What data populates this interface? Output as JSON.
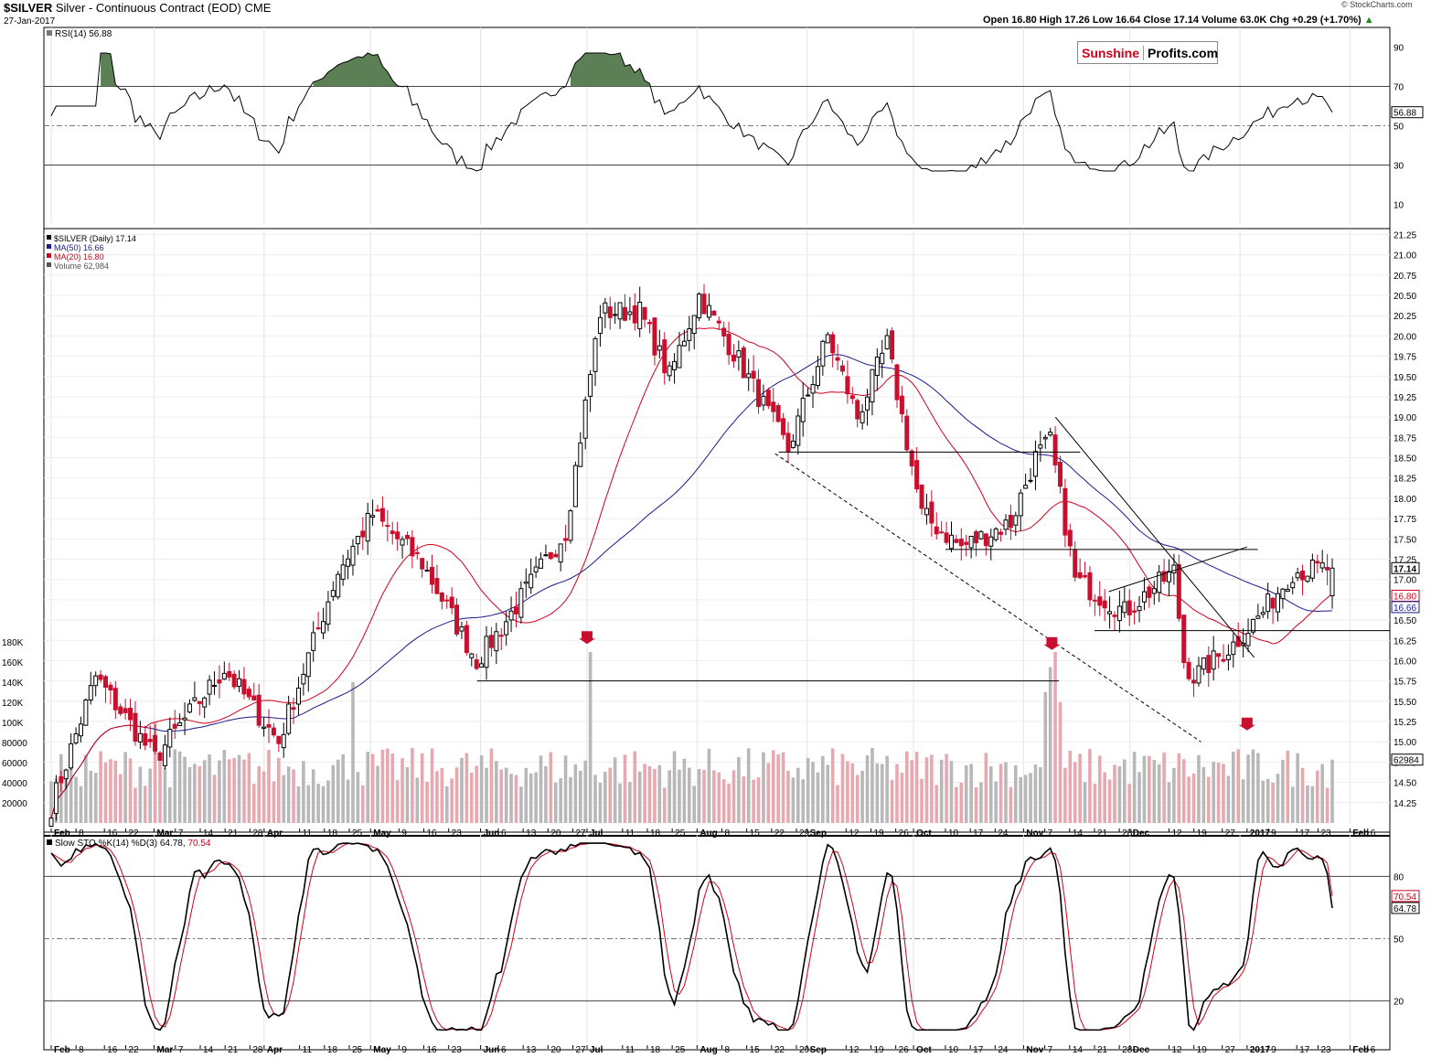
{
  "header": {
    "symbol": "$SILVER",
    "description": "Silver - Continuous Contract (EOD)",
    "exchange": "CME",
    "date": "27-Jan-2017",
    "watermark": "© StockCharts.com",
    "ohlc": "Open 16.80  High 17.26  Low 16.64  Close 17.14  Volume 63.0K  Chg +0.29 (+1.70%)",
    "ohlc_arrow": "▲"
  },
  "logo": {
    "part1": "Sunshine",
    "part2": "Profits.com"
  },
  "colors": {
    "up": "#000000",
    "down": "#c8102e",
    "ma50": "#1a1a8c",
    "ma20": "#d0021b",
    "vol_up": "#b8b8b8",
    "vol_down": "#e8a8b0",
    "rsi_fill": "#5c7f56",
    "stoch_d": "#d0021b"
  },
  "chart_data": [
    {
      "type": "line",
      "panel": "rsi",
      "title": "RSI(14) 56.88",
      "last_value": "56.88",
      "ylim": [
        0,
        100
      ],
      "yticks": [
        "90",
        "70",
        "50",
        "30",
        "10"
      ],
      "reference_lines": [
        70,
        50,
        30
      ]
    },
    {
      "type": "candlestick",
      "panel": "price",
      "legend": [
        "$SILVER (Daily) 17.14",
        "MA(50) 16.66",
        "MA(20) 16.80",
        "Volume 62,984"
      ],
      "ylim": [
        14.0,
        21.3
      ],
      "yticks": [
        "21.25",
        "21.00",
        "20.75",
        "20.50",
        "20.25",
        "20.00",
        "19.75",
        "19.50",
        "19.25",
        "19.00",
        "18.75",
        "18.50",
        "18.25",
        "18.00",
        "17.75",
        "17.50",
        "17.25",
        "17.00",
        "16.75",
        "16.50",
        "16.25",
        "16.00",
        "15.75",
        "15.50",
        "15.25",
        "15.00",
        "14.75",
        "14.50",
        "14.25"
      ],
      "volume_ticks": [
        "180K",
        "160K",
        "140K",
        "120K",
        "100K",
        "80000",
        "60000",
        "40000",
        "20000"
      ],
      "last_labels": {
        "close": "17.14",
        "ma20": "16.80",
        "ma50": "16.66",
        "volume": "62984"
      },
      "key_points": [
        {
          "date": "2016-02-01",
          "close": 14.2
        },
        {
          "date": "2016-02-12",
          "close": 15.8
        },
        {
          "date": "2016-03-01",
          "close": 14.8
        },
        {
          "date": "2016-03-21",
          "close": 15.9
        },
        {
          "date": "2016-04-05",
          "close": 15.0
        },
        {
          "date": "2016-04-21",
          "close": 17.1
        },
        {
          "date": "2016-05-02",
          "close": 17.8
        },
        {
          "date": "2016-05-16",
          "close": 17.2
        },
        {
          "date": "2016-05-31",
          "close": 16.0
        },
        {
          "date": "2016-06-07",
          "close": 16.4
        },
        {
          "date": "2016-06-24",
          "close": 17.6
        },
        {
          "date": "2016-07-05",
          "close": 20.3
        },
        {
          "date": "2016-07-15",
          "close": 20.3
        },
        {
          "date": "2016-07-25",
          "close": 19.5
        },
        {
          "date": "2016-08-02",
          "close": 20.5
        },
        {
          "date": "2016-08-12",
          "close": 19.7
        },
        {
          "date": "2016-08-26",
          "close": 18.6
        },
        {
          "date": "2016-09-07",
          "close": 20.0
        },
        {
          "date": "2016-09-15",
          "close": 19.0
        },
        {
          "date": "2016-09-23",
          "close": 19.9
        },
        {
          "date": "2016-10-04",
          "close": 17.8
        },
        {
          "date": "2016-10-14",
          "close": 17.4
        },
        {
          "date": "2016-10-28",
          "close": 17.7
        },
        {
          "date": "2016-11-04",
          "close": 18.5
        },
        {
          "date": "2016-11-09",
          "close": 18.7
        },
        {
          "date": "2016-11-16",
          "close": 17.0
        },
        {
          "date": "2016-11-30",
          "close": 16.6
        },
        {
          "date": "2016-12-12",
          "close": 17.0
        },
        {
          "date": "2016-12-14",
          "close": 17.1
        },
        {
          "date": "2016-12-16",
          "close": 16.0
        },
        {
          "date": "2016-12-20",
          "close": 15.8
        },
        {
          "date": "2016-12-30",
          "close": 16.2
        },
        {
          "date": "2017-01-09",
          "close": 16.6
        },
        {
          "date": "2017-01-17",
          "close": 17.1
        },
        {
          "date": "2017-01-27",
          "close": 17.14
        }
      ]
    },
    {
      "type": "line",
      "panel": "stochastic",
      "title": "Slow STO %K(14) %D(3) 64.78, 70.54",
      "title_main": "Slow STO %K(14) %D(3) 64.78,",
      "title_d": "70.54",
      "ylim": [
        0,
        100
      ],
      "yticks": [
        "80",
        "50",
        "20"
      ],
      "last_labels": {
        "d": "70.54",
        "k": "64.78"
      }
    }
  ],
  "x_axis": {
    "labels": [
      "Feb",
      "8",
      "16",
      "22",
      "Mar",
      "7",
      "14",
      "21",
      "28",
      "Apr",
      "11",
      "18",
      "25",
      "May",
      "9",
      "16",
      "23",
      "Jun",
      "6",
      "13",
      "20",
      "27",
      "Jul",
      "11",
      "18",
      "25",
      "Aug",
      "8",
      "15",
      "22",
      "29",
      "Sep",
      "12",
      "19",
      "26",
      "Oct",
      "10",
      "17",
      "24",
      "Nov",
      "7",
      "14",
      "21",
      "28",
      "Dec",
      "12",
      "19",
      "27",
      "2017",
      "9",
      "17",
      "23",
      "Feb",
      "6"
    ]
  }
}
